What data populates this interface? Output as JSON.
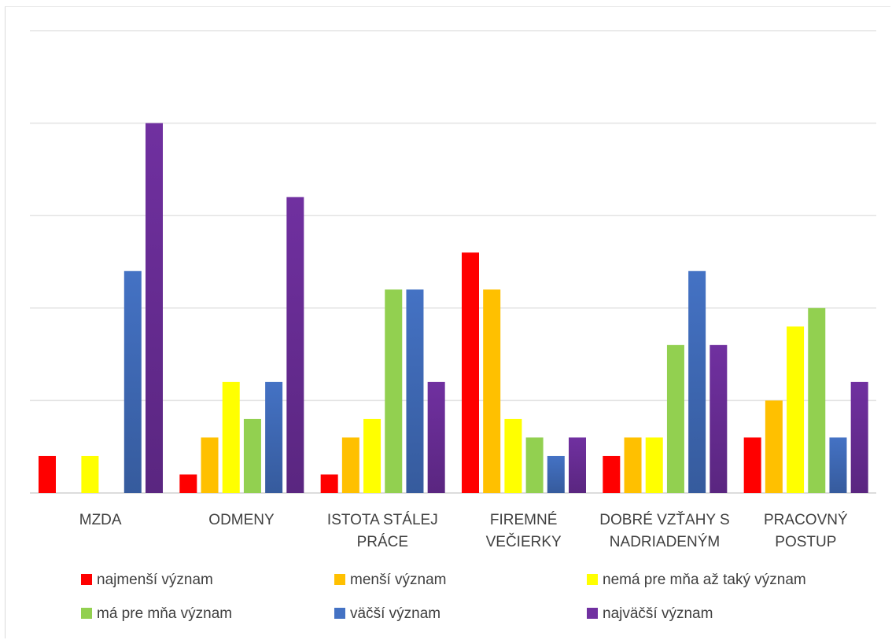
{
  "chart_data": {
    "type": "bar",
    "categories": [
      [
        "MZDA"
      ],
      [
        "ODMENY"
      ],
      [
        "ISTOTA STÁLEJ",
        "PRÁCE"
      ],
      [
        "FIREMNÉ",
        "VEČIERKY"
      ],
      [
        "DOBRÉ VZŤAHY S",
        "NADRIADENÝM"
      ],
      [
        "PRACOVNÝ",
        "POSTUP"
      ]
    ],
    "series": [
      {
        "name": "najmenší význam",
        "color": "#ff0000",
        "values": [
          2,
          1,
          1,
          13,
          2,
          3
        ]
      },
      {
        "name": "menší význam",
        "color": "#ffc000",
        "values": [
          0,
          3,
          3,
          11,
          3,
          5
        ]
      },
      {
        "name": "nemá pre mňa až taký význam",
        "color": "#ffff00",
        "values": [
          2,
          6,
          4,
          4,
          3,
          9
        ]
      },
      {
        "name": "má pre mňa význam",
        "color": "#92d050",
        "values": [
          0,
          4,
          11,
          3,
          8,
          10
        ]
      },
      {
        "name": "väčší význam",
        "color": "#4472c4",
        "values": [
          12,
          6,
          11,
          2,
          12,
          3
        ]
      },
      {
        "name": "najväčší význam",
        "color": "#7030a0",
        "values": [
          20,
          16,
          6,
          3,
          8,
          6
        ]
      }
    ],
    "ylim": [
      0,
      25
    ],
    "grid": true,
    "legend_position": "bottom",
    "title": "",
    "xlabel": "",
    "ylabel": ""
  }
}
